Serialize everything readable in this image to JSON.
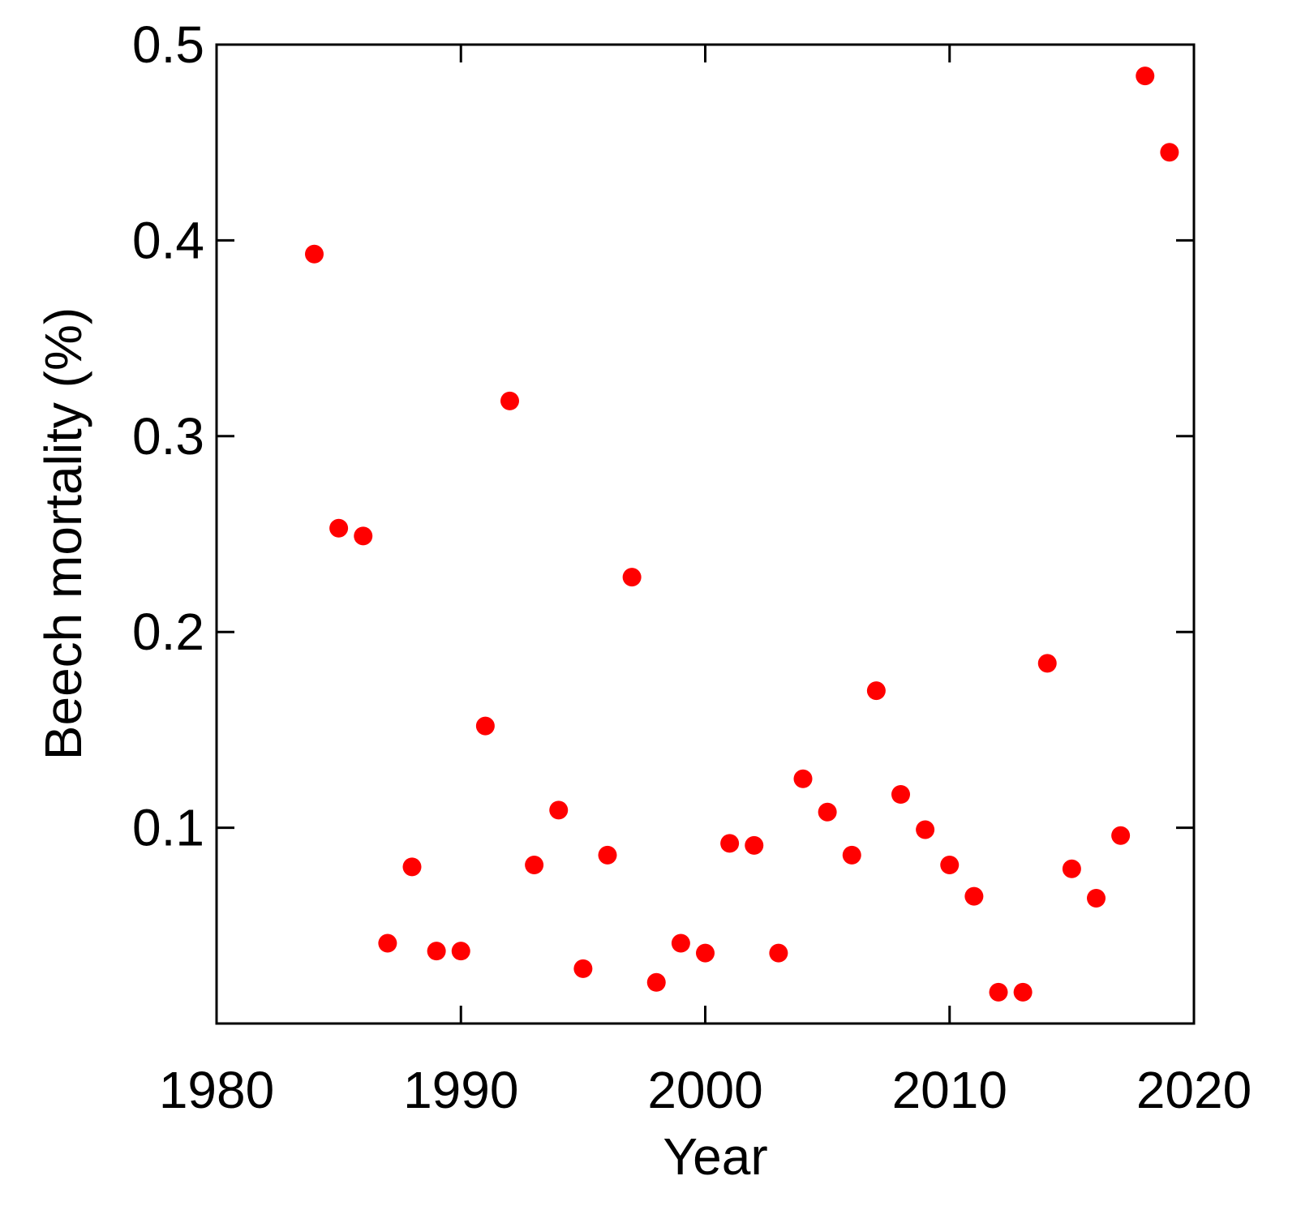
{
  "chart_data": {
    "type": "scatter",
    "title": "",
    "xlabel": "Year",
    "ylabel": "Beech mortality (%)",
    "xlim": [
      1980,
      2020
    ],
    "ylim": [
      0,
      0.5
    ],
    "grid": false,
    "legend": "none",
    "marker_color": "#ff0000",
    "x_ticks": [
      1980,
      1990,
      2000,
      2010,
      2020
    ],
    "x_tick_labels": [
      "1980",
      "1990",
      "2000",
      "2010",
      "2020"
    ],
    "y_ticks": [
      0.1,
      0.2,
      0.3,
      0.4,
      0.5
    ],
    "y_tick_labels": [
      "0.1",
      "0.2",
      "0.3",
      "0.4",
      "0.5"
    ],
    "series": [
      {
        "points": [
          {
            "x": 1984,
            "y": 0.393
          },
          {
            "x": 1985,
            "y": 0.253
          },
          {
            "x": 1986,
            "y": 0.249
          },
          {
            "x": 1987,
            "y": 0.041
          },
          {
            "x": 1988,
            "y": 0.08
          },
          {
            "x": 1989,
            "y": 0.037
          },
          {
            "x": 1990,
            "y": 0.037
          },
          {
            "x": 1991,
            "y": 0.152
          },
          {
            "x": 1992,
            "y": 0.318
          },
          {
            "x": 1993,
            "y": 0.081
          },
          {
            "x": 1994,
            "y": 0.109
          },
          {
            "x": 1995,
            "y": 0.028
          },
          {
            "x": 1996,
            "y": 0.086
          },
          {
            "x": 1997,
            "y": 0.228
          },
          {
            "x": 1998,
            "y": 0.021
          },
          {
            "x": 1999,
            "y": 0.041
          },
          {
            "x": 2000,
            "y": 0.036
          },
          {
            "x": 2001,
            "y": 0.092
          },
          {
            "x": 2002,
            "y": 0.091
          },
          {
            "x": 2003,
            "y": 0.036
          },
          {
            "x": 2004,
            "y": 0.125
          },
          {
            "x": 2005,
            "y": 0.108
          },
          {
            "x": 2006,
            "y": 0.086
          },
          {
            "x": 2007,
            "y": 0.17
          },
          {
            "x": 2008,
            "y": 0.117
          },
          {
            "x": 2009,
            "y": 0.099
          },
          {
            "x": 2010,
            "y": 0.081
          },
          {
            "x": 2011,
            "y": 0.065
          },
          {
            "x": 2012,
            "y": 0.016
          },
          {
            "x": 2013,
            "y": 0.016
          },
          {
            "x": 2014,
            "y": 0.184
          },
          {
            "x": 2015,
            "y": 0.079
          },
          {
            "x": 2016,
            "y": 0.064
          },
          {
            "x": 2017,
            "y": 0.096
          },
          {
            "x": 2018,
            "y": 0.484
          },
          {
            "x": 2019,
            "y": 0.445
          }
        ]
      }
    ]
  }
}
